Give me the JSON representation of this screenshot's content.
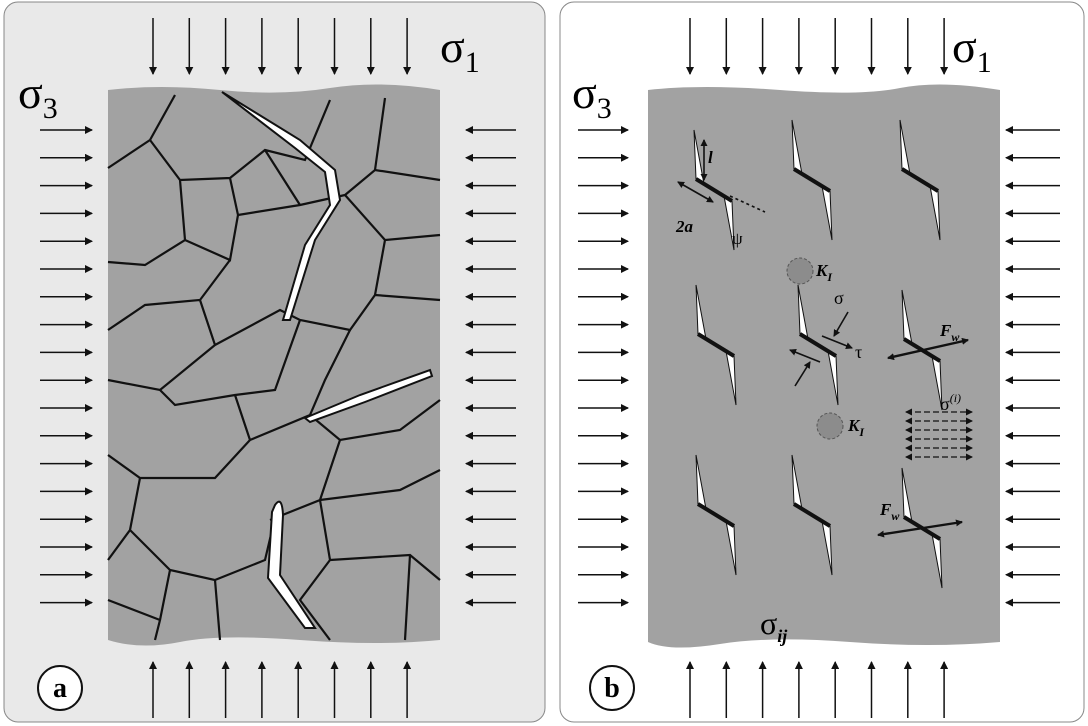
{
  "panels": [
    {
      "label": "a",
      "sigma1": {
        "symbol": "σ",
        "sub": "1"
      },
      "sigma3": {
        "symbol": "σ",
        "sub": "3"
      }
    },
    {
      "label": "b",
      "sigma1": {
        "symbol": "σ",
        "sub": "1"
      },
      "sigma3": {
        "symbol": "σ",
        "sub": "3"
      },
      "annotations": {
        "length": "l",
        "half_length": "2a",
        "angle": "ψ",
        "k_top": {
          "main": "K",
          "sub": "I"
        },
        "k_bottom": {
          "main": "K",
          "sub": "I"
        },
        "normal_stress": "σ",
        "shear_stress": "τ",
        "force_top": {
          "main": "F",
          "sub": "w"
        },
        "force_bottom": {
          "main": "F",
          "sub": "w"
        },
        "internal_stress": {
          "main": "σ",
          "sup": "(i)"
        },
        "stress_tensor": {
          "main": "σ",
          "sub": "ij"
        }
      }
    }
  ]
}
